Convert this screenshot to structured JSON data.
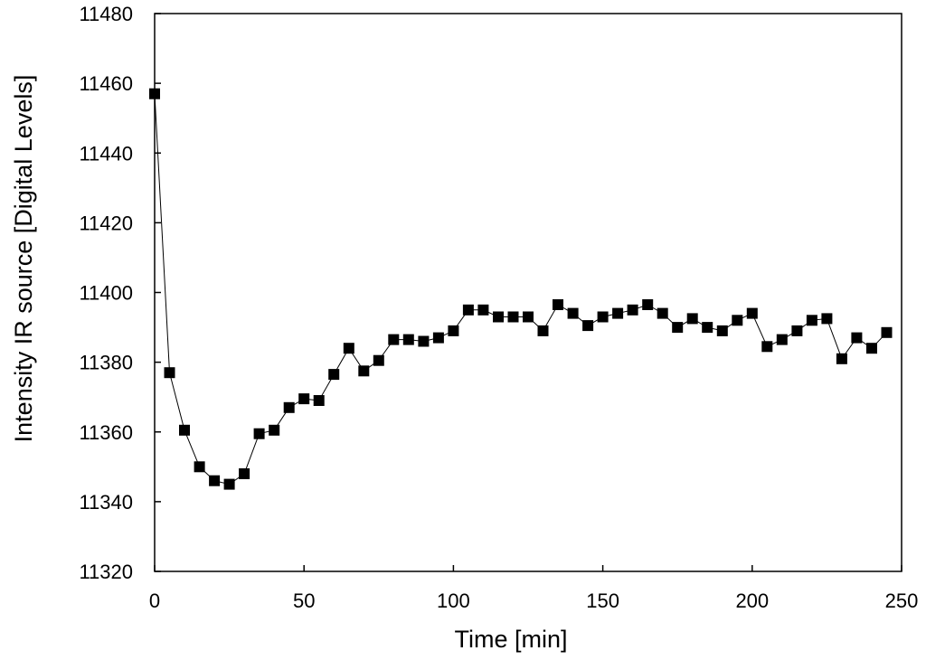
{
  "chart_data": {
    "type": "line",
    "title": "",
    "xlabel": "Time [min]",
    "ylabel": "Intensity  IR source [Digital Levels]",
    "xlim": [
      0,
      250
    ],
    "ylim": [
      11320,
      11480
    ],
    "xticks": [
      0,
      50,
      100,
      150,
      200,
      250
    ],
    "yticks": [
      11320,
      11340,
      11360,
      11380,
      11400,
      11420,
      11440,
      11460,
      11480
    ],
    "grid": false,
    "legend": "none",
    "marker": "square",
    "color": "#000000",
    "series": [
      {
        "x": [
          0,
          5,
          10,
          15,
          20,
          25,
          30,
          35,
          40,
          45,
          50,
          55,
          60,
          65,
          70,
          75,
          80,
          85,
          90,
          95,
          100,
          105,
          110,
          115,
          120,
          125,
          130,
          135,
          140,
          145,
          150,
          155,
          160,
          165,
          170,
          175,
          180,
          185,
          190,
          195,
          200,
          205,
          210,
          215,
          220,
          225,
          230,
          235,
          240,
          245
        ],
        "y": [
          11457,
          11377,
          11360.5,
          11350,
          11346,
          11345,
          11348,
          11359.5,
          11360.5,
          11367,
          11369.5,
          11369,
          11376.5,
          11384,
          11377.5,
          11380.5,
          11386.5,
          11386.5,
          11386,
          11387,
          11389,
          11395,
          11395,
          11393,
          11393,
          11393,
          11389,
          11396.5,
          11394,
          11390.5,
          11393,
          11394,
          11395,
          11396.5,
          11394,
          11390,
          11392.5,
          11390,
          11389,
          11392,
          11394,
          11384.5,
          11386.5,
          11389,
          11392,
          11392.5,
          11381,
          11387,
          11384,
          11388.5
        ]
      }
    ]
  }
}
